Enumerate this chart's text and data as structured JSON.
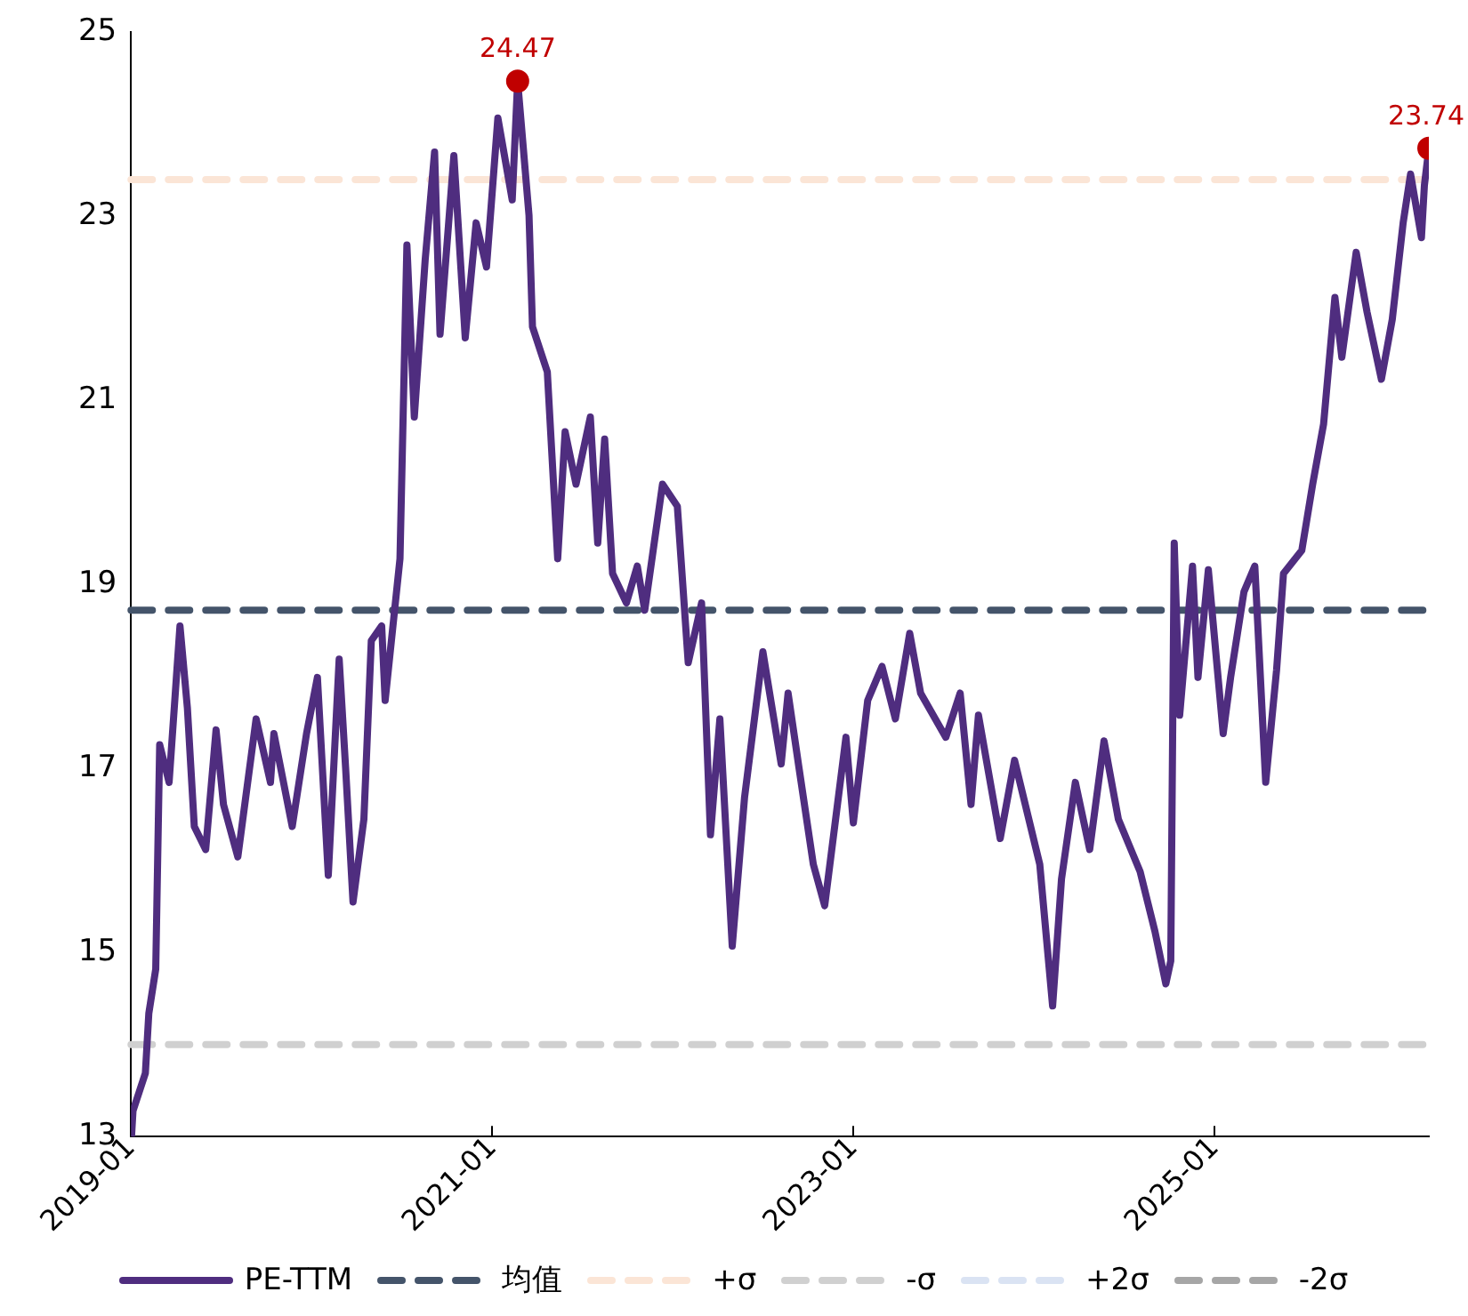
{
  "chart_data": {
    "type": "line",
    "xlim": [
      "2019-01-01",
      "2026-03-10"
    ],
    "xticks": [
      "2019-01",
      "2021-01",
      "2023-01",
      "2025-01"
    ],
    "ylim": [
      13,
      25
    ],
    "yticks": [
      13,
      15,
      17,
      19,
      21,
      23,
      25
    ],
    "grid": false,
    "legend": "bottom",
    "marker": "none",
    "line_style": "solid",
    "series": [
      {
        "name": "PE-TTM",
        "color": "#4f2d7f",
        "x": [
          "2019-01-02",
          "2019-01-05",
          "2019-01-30",
          "2019-02-06",
          "2019-02-20",
          "2019-02-28",
          "2019-03-19",
          "2019-04-10",
          "2019-04-25",
          "2019-05-09",
          "2019-06-01",
          "2019-06-22",
          "2019-07-07",
          "2019-08-05",
          "2019-09-11",
          "2019-10-10",
          "2019-10-17",
          "2019-11-23",
          "2019-12-22",
          "2020-01-13",
          "2020-02-04",
          "2020-02-26",
          "2020-03-10",
          "2020-03-25",
          "2020-04-16",
          "2020-05-01",
          "2020-05-22",
          "2020-05-29",
          "2020-06-28",
          "2020-07-12",
          "2020-07-27",
          "2020-08-18",
          "2020-09-06",
          "2020-09-17",
          "2020-10-15",
          "2020-11-07",
          "2020-11-29",
          "2020-12-20",
          "2021-01-12",
          "2021-02-10",
          "2021-02-21",
          "2021-03-16",
          "2021-03-23",
          "2021-04-22",
          "2021-05-13",
          "2021-05-28",
          "2021-06-19",
          "2021-07-18",
          "2021-08-02",
          "2021-08-16",
          "2021-09-01",
          "2021-09-29",
          "2021-10-21",
          "2021-11-05",
          "2021-12-11",
          "2022-01-10",
          "2022-02-01",
          "2022-02-28",
          "2022-03-18",
          "2022-04-06",
          "2022-05-01",
          "2022-05-26",
          "2022-07-02",
          "2022-08-08",
          "2022-08-22",
          "2022-09-13",
          "2022-10-12",
          "2022-11-04",
          "2022-12-17",
          "2023-01-01",
          "2023-01-30",
          "2023-02-28",
          "2023-03-27",
          "2023-04-25",
          "2023-05-17",
          "2023-07-07",
          "2023-08-05",
          "2023-08-27",
          "2023-09-11",
          "2023-10-25",
          "2023-11-23",
          "2024-01-13",
          "2024-02-08",
          "2024-02-26",
          "2024-03-25",
          "2024-04-23",
          "2024-05-22",
          "2024-06-20",
          "2024-08-03",
          "2024-09-02",
          "2024-09-24",
          "2024-10-04",
          "2024-10-11",
          "2024-10-22",
          "2024-11-17",
          "2024-11-28",
          "2024-12-19",
          "2025-01-18",
          "2025-02-02",
          "2025-03-01",
          "2025-03-23",
          "2025-04-14",
          "2025-05-06",
          "2025-05-20",
          "2025-06-26",
          "2025-07-18",
          "2025-08-09",
          "2025-09-01",
          "2025-09-15",
          "2025-10-14",
          "2025-11-05",
          "2025-12-04",
          "2025-12-26",
          "2026-01-17",
          "2026-02-01",
          "2026-02-23",
          "2026-03-01",
          "2026-03-10"
        ],
        "values": [
          13.0,
          13.28,
          13.69,
          14.34,
          14.82,
          17.26,
          16.85,
          18.55,
          17.66,
          16.37,
          16.12,
          17.42,
          16.61,
          16.04,
          17.54,
          16.85,
          17.38,
          16.37,
          17.38,
          17.99,
          15.84,
          18.19,
          17.01,
          15.55,
          16.45,
          18.39,
          18.55,
          17.74,
          19.28,
          22.69,
          20.82,
          22.53,
          23.7,
          21.72,
          23.66,
          21.68,
          22.93,
          22.45,
          24.07,
          23.18,
          24.47,
          23.01,
          21.8,
          21.31,
          19.28,
          20.66,
          20.09,
          20.82,
          19.45,
          20.58,
          19.12,
          18.8,
          19.2,
          18.72,
          20.09,
          19.85,
          18.15,
          18.8,
          16.28,
          17.54,
          15.07,
          16.69,
          18.27,
          17.05,
          17.82,
          17.01,
          15.96,
          15.51,
          17.34,
          16.41,
          17.74,
          18.11,
          17.54,
          18.47,
          17.82,
          17.34,
          17.82,
          16.61,
          17.58,
          16.24,
          17.09,
          15.96,
          14.42,
          15.8,
          16.85,
          16.12,
          17.3,
          16.45,
          15.88,
          15.23,
          14.66,
          14.91,
          19.45,
          17.58,
          19.2,
          17.99,
          19.16,
          17.38,
          17.99,
          18.92,
          19.2,
          16.85,
          18.07,
          19.12,
          19.37,
          20.09,
          20.74,
          22.12,
          21.47,
          22.61,
          21.96,
          21.23,
          21.88,
          22.93,
          23.46,
          22.77,
          23.34,
          23.74
        ]
      },
      {
        "type": "scatter",
        "marker": "circle",
        "color": "#c00000",
        "x": [
          "2021-02-21",
          "2026-03-10"
        ],
        "values": [
          24.47,
          23.74
        ],
        "value_labels": [
          "24.47",
          "23.74"
        ]
      },
      {
        "name": "+2σ",
        "color": "#dae3f3",
        "line_style": "dashed"
      },
      {
        "name": "-2σ",
        "color": "#a6a6a6",
        "line_style": "dashed"
      }
    ],
    "ref_lines": [
      {
        "axis": "y",
        "value": 18.72,
        "label": "均值",
        "color": "#44546a",
        "line_style": "dashed"
      },
      {
        "axis": "y",
        "value": 23.4,
        "label": "+σ",
        "color": "#fbe5d6",
        "line_style": "dashed"
      },
      {
        "axis": "y",
        "value": 14.0,
        "label": "-σ",
        "color": "#d0d0d0",
        "line_style": "dashed"
      }
    ]
  }
}
